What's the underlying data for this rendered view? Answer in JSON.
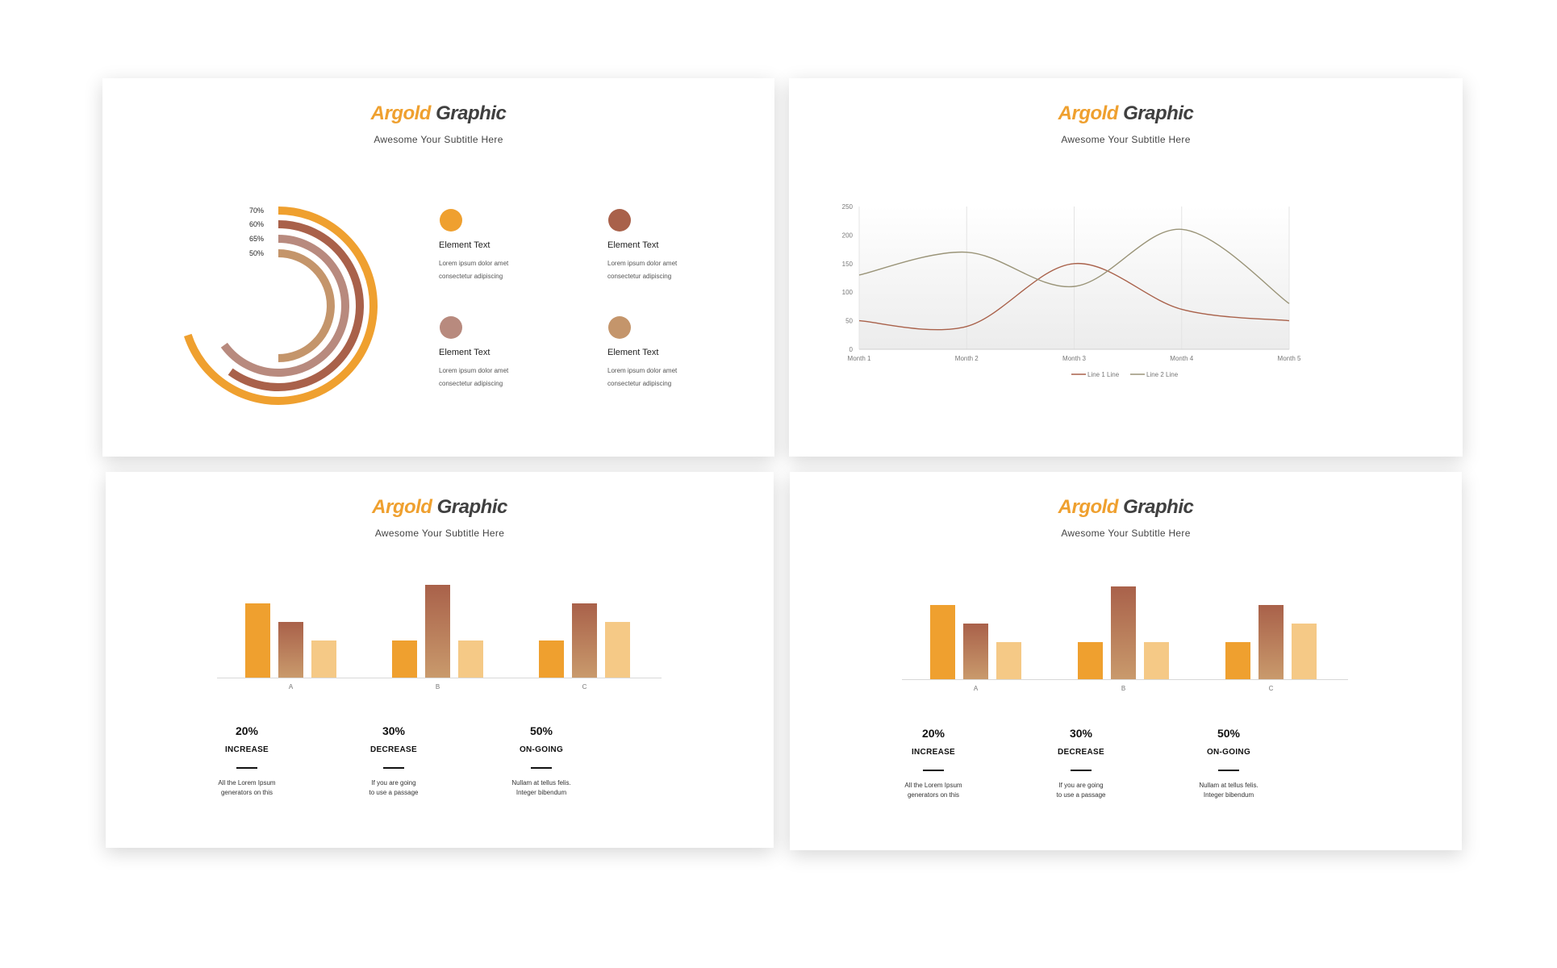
{
  "brand": {
    "part1": "Argold",
    "part2": "Graphic",
    "subtitle": "Awesome Your Subtitle Here"
  },
  "colors": {
    "orange": "#EFA02F",
    "brown": "#A9614A",
    "rose": "#B88A7E",
    "tan": "#C4956B",
    "light": "#F5C986",
    "line1": "#A9614A",
    "line2": "#9A9478"
  },
  "radial": {
    "rings": [
      {
        "label": "70%",
        "value": 70,
        "color": "#EFA02F"
      },
      {
        "label": "60%",
        "value": 60,
        "color": "#A9614A"
      },
      {
        "label": "65%",
        "value": 65,
        "color": "#B88A7E"
      },
      {
        "label": "50%",
        "value": 50,
        "color": "#C4956B"
      }
    ],
    "elements": [
      {
        "title": "Element  Text",
        "line1": "Lorem ipsum dolor amet",
        "line2": "consectetur adipiscing",
        "color": "#EFA02F"
      },
      {
        "title": "Element  Text",
        "line1": "Lorem ipsum dolor amet",
        "line2": "consectetur adipiscing",
        "color": "#A9614A"
      },
      {
        "title": "Element  Text",
        "line1": "Lorem ipsum dolor amet",
        "line2": "consectetur adipiscing",
        "color": "#B88A7E"
      },
      {
        "title": "Element  Text",
        "line1": "Lorem ipsum dolor amet",
        "line2": "consectetur adipiscing",
        "color": "#C4956B"
      }
    ]
  },
  "stats": [
    {
      "pct": "20%",
      "label": "INCREASE",
      "desc1": "All the Lorem Ipsum",
      "desc2": "generators on this"
    },
    {
      "pct": "30%",
      "label": "DECREASE",
      "desc1": "If you are going",
      "desc2": "to use a passage"
    },
    {
      "pct": "50%",
      "label": "ON-GOING",
      "desc1": "Nullam at tellus felis.",
      "desc2": "Integer bibendum"
    }
  ],
  "chart_data": [
    {
      "type": "pie",
      "subtype": "radial-bar",
      "categories": [
        "70%",
        "60%",
        "65%",
        "50%"
      ],
      "values": [
        70,
        60,
        65,
        50
      ]
    },
    {
      "type": "line",
      "x": [
        "Month 1",
        "Month 2",
        "Month 3",
        "Month 4",
        "Month 5"
      ],
      "series": [
        {
          "name": "Line 1 Line",
          "values": [
            50,
            40,
            150,
            70,
            50
          ]
        },
        {
          "name": "Line 2 Line",
          "values": [
            130,
            170,
            110,
            210,
            80
          ]
        }
      ],
      "ylim": [
        0,
        250
      ],
      "yticks": [
        0,
        50,
        100,
        150,
        200,
        250
      ],
      "legend": "bottom"
    },
    {
      "type": "bar",
      "categories": [
        "A",
        "B",
        "C"
      ],
      "series": [
        {
          "values": [
            4,
            2,
            2
          ]
        },
        {
          "values": [
            3,
            5,
            4
          ]
        },
        {
          "values": [
            2,
            2,
            3
          ]
        }
      ],
      "ylim": [
        0,
        5
      ]
    },
    {
      "type": "bar",
      "categories": [
        "A",
        "B",
        "C"
      ],
      "series": [
        {
          "values": [
            4,
            2,
            2
          ]
        },
        {
          "values": [
            3,
            5,
            4
          ]
        },
        {
          "values": [
            2,
            2,
            3
          ]
        }
      ],
      "ylim": [
        0,
        5
      ]
    }
  ]
}
